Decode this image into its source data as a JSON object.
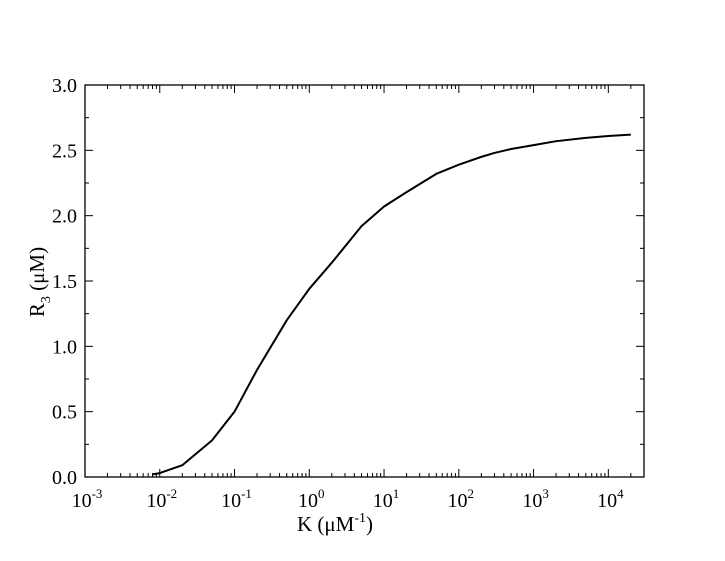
{
  "chart_data": {
    "type": "line",
    "title": "",
    "xlabel": {
      "main": "K (μM",
      "sup": "-1",
      "close": ")"
    },
    "ylabel": {
      "main": "R",
      "sub": "3",
      "rest": " (μM)"
    },
    "x_scale": "log",
    "xlim": [
      0.001,
      30000
    ],
    "ylim": [
      0,
      3.0
    ],
    "grid": false,
    "legend": "none",
    "x_ticks": [
      {
        "value": 0.001,
        "base": "10",
        "exp": "-3"
      },
      {
        "value": 0.01,
        "base": "10",
        "exp": "-2"
      },
      {
        "value": 0.1,
        "base": "10",
        "exp": "-1"
      },
      {
        "value": 1,
        "base": "10",
        "exp": "0"
      },
      {
        "value": 10,
        "base": "10",
        "exp": "1"
      },
      {
        "value": 100,
        "base": "10",
        "exp": "2"
      },
      {
        "value": 1000,
        "base": "10",
        "exp": "3"
      },
      {
        "value": 10000,
        "base": "10",
        "exp": "4"
      }
    ],
    "y_ticks": [
      {
        "value": 0.0,
        "label": "0.0"
      },
      {
        "value": 0.5,
        "label": "0.5"
      },
      {
        "value": 1.0,
        "label": "1.0"
      },
      {
        "value": 1.5,
        "label": "1.5"
      },
      {
        "value": 2.0,
        "label": "2.0"
      },
      {
        "value": 2.5,
        "label": "2.5"
      },
      {
        "value": 3.0,
        "label": "3.0"
      }
    ],
    "y_minor_step": 0.25,
    "series": [
      {
        "color": "#000000",
        "x": [
          0.008,
          0.01,
          0.02,
          0.05,
          0.1,
          0.2,
          0.5,
          1,
          2,
          5,
          10,
          20,
          50,
          100,
          200,
          300,
          500,
          1000,
          2000,
          5000,
          10000,
          20000
        ],
        "y": [
          0.02,
          0.03,
          0.09,
          0.28,
          0.5,
          0.82,
          1.2,
          1.44,
          1.64,
          1.92,
          2.07,
          2.18,
          2.32,
          2.39,
          2.45,
          2.48,
          2.51,
          2.54,
          2.57,
          2.595,
          2.61,
          2.62
        ]
      }
    ]
  }
}
